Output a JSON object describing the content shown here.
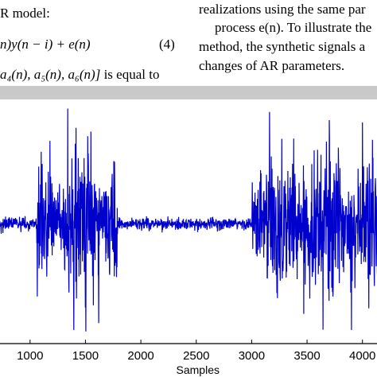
{
  "paper": {
    "left_col": {
      "line1": "R model:",
      "eq_left": "n)y(n − i) + e(n)",
      "eq_number": "(4)",
      "line3_math": "a₄(n), a₅(n), a₆(n)]",
      "line3_text": "is equal to"
    },
    "right_col": {
      "line1": "realizations using the same par",
      "line2": "process e(n). To illustrate the",
      "line3": "method, the synthetic signals a",
      "line4": "changes of AR parameters."
    }
  },
  "chart_data": {
    "type": "line",
    "xlabel": "Samples",
    "ylabel": "",
    "title": "",
    "xticks": [
      1000,
      1500,
      2000,
      2500,
      3000,
      3500,
      4000
    ],
    "xticklabels": [
      "1000",
      "1500",
      "2000",
      "2500",
      "3000",
      "3500",
      "4000"
    ],
    "xlim": [
      700,
      4160
    ],
    "ylim": [
      -1.0,
      1.0
    ],
    "grid": false,
    "series": [
      {
        "color": "#0000cc",
        "segments": [
          {
            "x_start": 700,
            "x_end": 1060,
            "amplitude": 0.08
          },
          {
            "x_start": 1060,
            "x_end": 1790,
            "amplitude": 0.85
          },
          {
            "x_start": 1790,
            "x_end": 3000,
            "amplitude": 0.07
          },
          {
            "x_start": 3000,
            "x_end": 4160,
            "amplitude": 0.9
          }
        ],
        "peaks": [
          {
            "x": 1340,
            "y": 1.0
          },
          {
            "x": 1395,
            "y": -0.92
          },
          {
            "x": 1180,
            "y": 0.72
          },
          {
            "x": 1550,
            "y": 0.8
          },
          {
            "x": 1620,
            "y": -0.86
          },
          {
            "x": 3380,
            "y": 0.74
          },
          {
            "x": 3470,
            "y": -0.78
          },
          {
            "x": 3700,
            "y": 0.9
          },
          {
            "x": 4000,
            "y": 0.88
          },
          {
            "x": 3900,
            "y": -0.92
          }
        ]
      }
    ]
  }
}
